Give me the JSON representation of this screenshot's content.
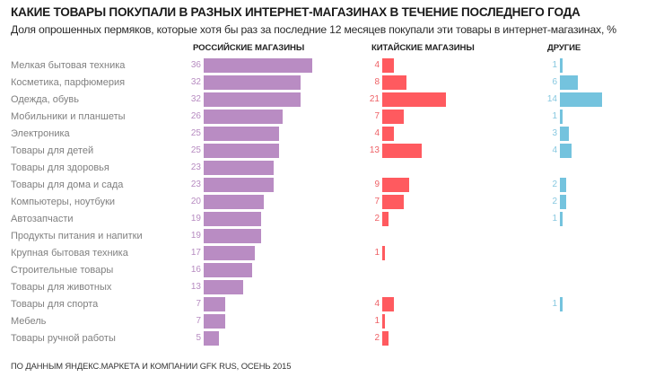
{
  "chart_data": {
    "type": "bar",
    "orientation": "horizontal",
    "title": "КАКИЕ ТОВАРЫ ПОКУПАЛИ В РАЗНЫХ ИНТЕРНЕТ-МАГАЗИНАХ В ТЕЧЕНИЕ ПОСЛЕДНЕГО ГОДА",
    "subtitle": "Доля опрошенных пермяков, которые хотя бы раз за последние 12 месяцев покупали эти товары в интернет-магазинах, %",
    "unit": "%",
    "xlabel": "",
    "ylabel": "",
    "grid": false,
    "legend": "column headers (top)",
    "categories": [
      "Мелкая бытовая техника",
      "Косметика, парфюмерия",
      "Одежда, обувь",
      "Мобильники и планшеты",
      "Электроника",
      "Товары для детей",
      "Товары для здоровья",
      "Товары для дома и сада",
      "Компьютеры, ноутбуки",
      "Автозапчасти",
      "Продукты питания и напитки",
      "Крупная бытовая техника",
      "Строительные товары",
      "Товары для животных",
      "Товары для спорта",
      "Мебель",
      "Товары ручной работы"
    ],
    "series": [
      {
        "name": "РОССИЙСКИЕ МАГАЗИНЫ",
        "color": "#b98cc3",
        "label_color": "#b78bc1",
        "values": [
          36,
          32,
          32,
          26,
          25,
          25,
          23,
          23,
          20,
          19,
          19,
          17,
          16,
          13,
          7,
          7,
          5
        ]
      },
      {
        "name": "КИТАЙСКИЕ МАГАЗИНЫ",
        "color": "#ff5a5f",
        "label_color": "#ee6267",
        "values": [
          4,
          8,
          21,
          7,
          4,
          13,
          null,
          9,
          7,
          2,
          null,
          1,
          null,
          null,
          4,
          1,
          2
        ]
      },
      {
        "name": "ДРУГИЕ",
        "color": "#74c3de",
        "label_color": "#86c8e0",
        "values": [
          1,
          6,
          14,
          1,
          3,
          4,
          null,
          2,
          2,
          1,
          null,
          null,
          null,
          null,
          1,
          null,
          null
        ]
      }
    ],
    "source": "ПО ДАННЫМ ЯНДЕКС.МАРКЕТА И КОМПАНИИ GFK RUS, ОСЕНЬ 2015"
  }
}
